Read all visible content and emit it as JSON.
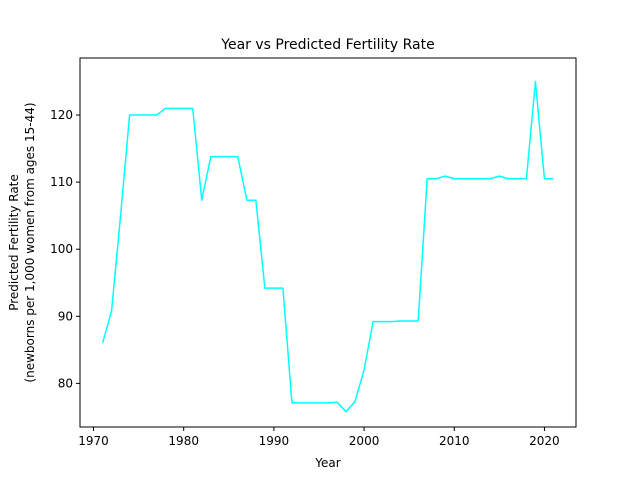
{
  "chart_data": {
    "type": "line",
    "title": "Year vs Predicted Fertility Rate",
    "xlabel": "Year",
    "ylabel_line1": "Predicted Fertility Rate",
    "ylabel_line2": "(newborns per 1,000 women from ages 15-44)",
    "xlim": [
      1968.5,
      2023.5
    ],
    "ylim": [
      73.5,
      128.5
    ],
    "xticks": [
      1970,
      1980,
      1990,
      2000,
      2010,
      2020
    ],
    "yticks": [
      80,
      90,
      100,
      110,
      120
    ],
    "grid": false,
    "series": [
      {
        "color": "#00ffff",
        "x": [
          1971,
          1972,
          1973,
          1974,
          1975,
          1976,
          1977,
          1978,
          1979,
          1980,
          1981,
          1982,
          1983,
          1984,
          1985,
          1986,
          1987,
          1988,
          1989,
          1990,
          1991,
          1992,
          1993,
          1994,
          1995,
          1996,
          1997,
          1998,
          1999,
          2000,
          2001,
          2002,
          2003,
          2004,
          2005,
          2006,
          2007,
          2008,
          2009,
          2010,
          2011,
          2012,
          2013,
          2014,
          2015,
          2016,
          2017,
          2018,
          2019,
          2020,
          2021
        ],
        "y": [
          86.0,
          90.8,
          105.0,
          120.0,
          120.0,
          120.0,
          120.0,
          121.0,
          121.0,
          121.0,
          121.0,
          107.3,
          113.8,
          113.8,
          113.8,
          113.8,
          107.3,
          107.3,
          94.2,
          94.2,
          94.2,
          77.1,
          77.1,
          77.1,
          77.1,
          77.1,
          77.2,
          75.8,
          77.3,
          82.0,
          89.2,
          89.2,
          89.2,
          89.3,
          89.3,
          89.3,
          110.5,
          110.5,
          110.9,
          110.5,
          110.5,
          110.5,
          110.5,
          110.5,
          110.9,
          110.5,
          110.5,
          110.5,
          125.0,
          110.5,
          110.5
        ]
      }
    ]
  }
}
